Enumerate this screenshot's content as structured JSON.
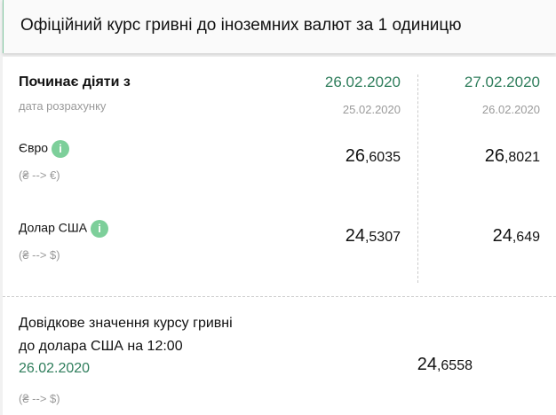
{
  "header": {
    "title": "Офіційний курс гривні до іноземних валют за 1 одиницю"
  },
  "table": {
    "start_label": "Починає діяти з",
    "calc_label": "дата розрахунку",
    "columns": [
      {
        "date": "26.02.2020",
        "calc_date": "25.02.2020"
      },
      {
        "date": "27.02.2020",
        "calc_date": "26.02.2020"
      }
    ],
    "rows": [
      {
        "name": "Євро",
        "direction": "(₴ --> €)",
        "values": [
          {
            "int": "26",
            "dec": ",6035"
          },
          {
            "int": "26",
            "dec": ",8021"
          }
        ]
      },
      {
        "name": "Долар США",
        "direction": "(₴ --> $)",
        "values": [
          {
            "int": "24",
            "dec": ",5307"
          },
          {
            "int": "24",
            "dec": ",649"
          }
        ]
      }
    ],
    "info_icon": "i"
  },
  "reference": {
    "line1": "Довідкове значення курсу гривні",
    "line2": "до долара США на 12:00",
    "date": "26.02.2020",
    "direction": "(₴ --> $)",
    "value": {
      "int": "24",
      "dec": ",6558"
    }
  },
  "colors": {
    "accent_green": "#2e7d5b",
    "info_green": "#7dcf9a"
  }
}
